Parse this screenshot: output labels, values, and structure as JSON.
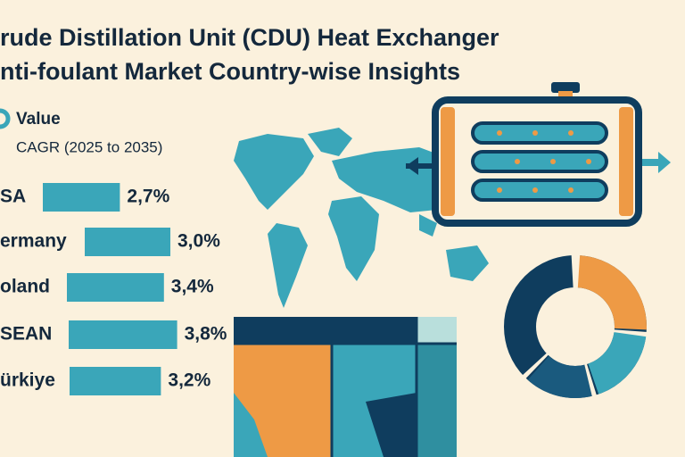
{
  "chart_data": {
    "type": "bar",
    "orientation": "horizontal",
    "title_lines": [
      "rude Distillation Unit (CDU) Heat Exchanger",
      "nti-foulant Market Country-wise Insights"
    ],
    "legend": [
      "Value",
      "CAGR (2025 to 2035)"
    ],
    "categories": [
      "SA",
      "ermany",
      "oland",
      "SEAN",
      "ürkiye"
    ],
    "values": [
      2.7,
      3.0,
      3.4,
      3.8,
      3.2
    ],
    "value_labels": [
      "2,7%",
      "3,0%",
      "3,4%",
      "3,8%",
      "3,2%"
    ],
    "color": "#3aa6b9"
  }
}
